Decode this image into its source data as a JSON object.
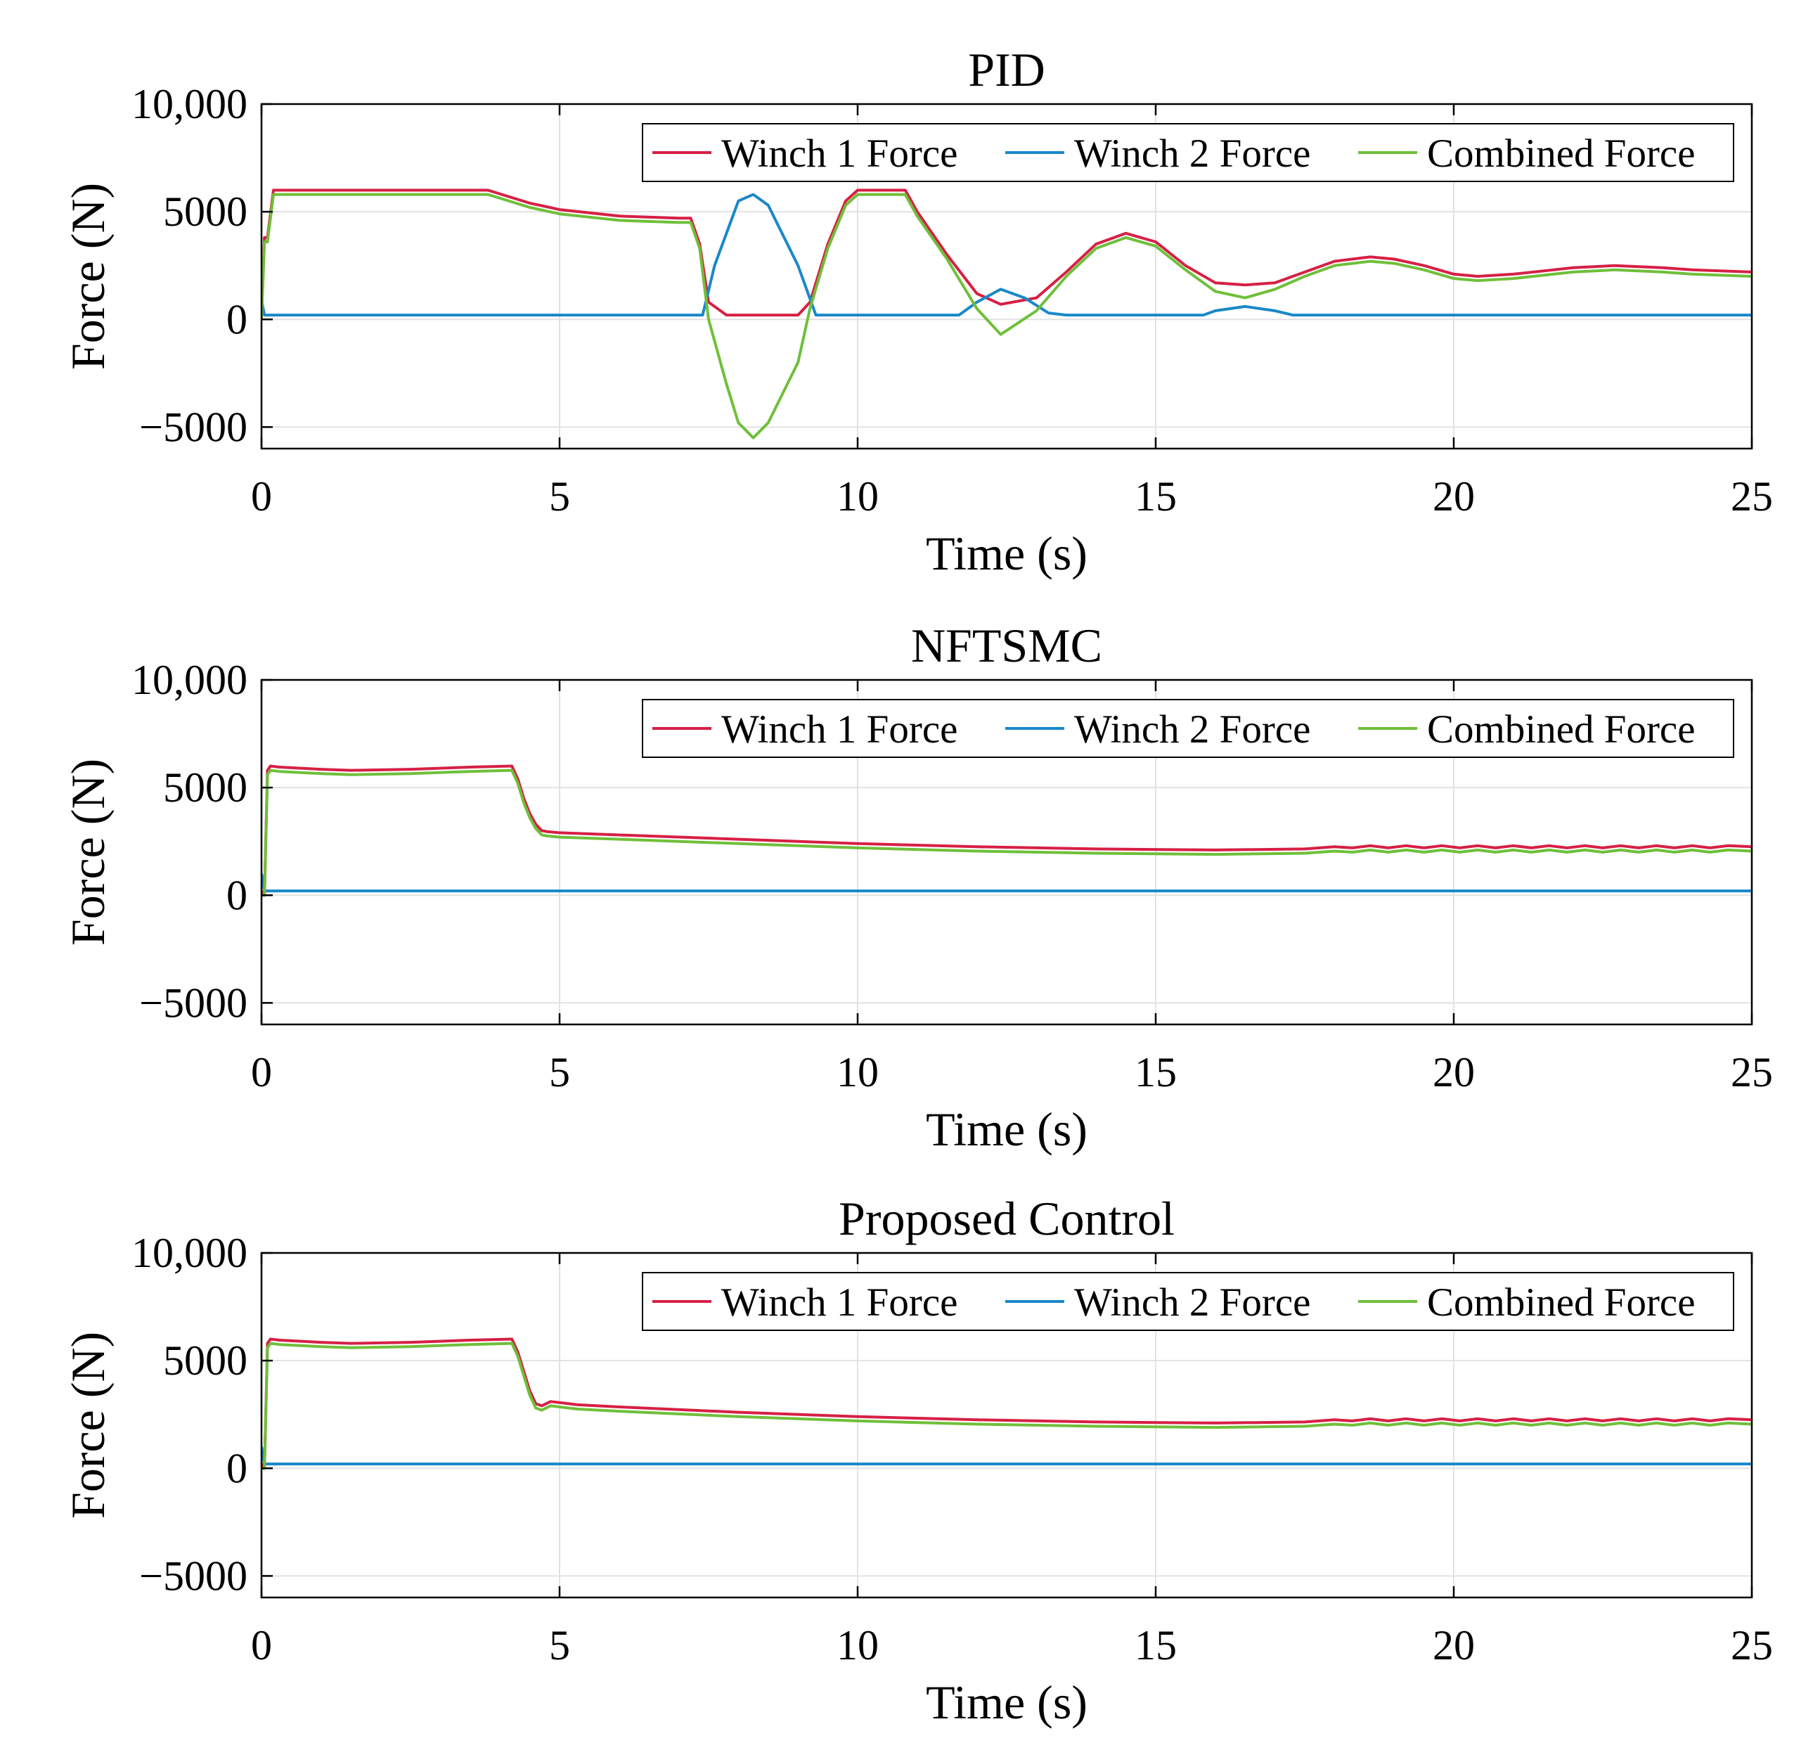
{
  "figure": {
    "colors": {
      "winch1": "#D62045",
      "winch2": "#1A88C9",
      "combined": "#6FBF3A",
      "grid": "#E2E2E2",
      "axis": "#000000"
    }
  },
  "chart_data": [
    {
      "type": "line",
      "title": "PID",
      "xlabel": "Time (s)",
      "ylabel": "Force (N)",
      "xlim": [
        0,
        25
      ],
      "ylim": [
        -6000,
        10000
      ],
      "xticks": [
        0,
        5,
        10,
        15,
        20,
        25
      ],
      "xtick_labels": [
        "0",
        "5",
        "10",
        "15",
        "20",
        "25"
      ],
      "yticks": [
        -5000,
        0,
        5000,
        10000
      ],
      "ytick_labels": [
        "−5000",
        "0",
        "5000",
        "10,000"
      ],
      "grid": true,
      "legend": {
        "placement": "top-right",
        "orientation": "horizontal",
        "entries": [
          "Winch 1 Force",
          "Winch 2 Force",
          "Combined Force"
        ]
      },
      "series": [
        {
          "name": "Winch 1 Force",
          "color_key": "winch1",
          "x": [
            0,
            0.05,
            0.1,
            0.2,
            0.3,
            1,
            2,
            3,
            3.8,
            4.5,
            5,
            6,
            7,
            7.2,
            7.35,
            7.5,
            7.8,
            8.5,
            9,
            9.2,
            9.5,
            9.8,
            10,
            10.5,
            10.8,
            11,
            11.5,
            12,
            12.4,
            13,
            13.5,
            14,
            14.5,
            15,
            15.5,
            16,
            16.5,
            17,
            17.5,
            18,
            18.6,
            19,
            19.5,
            20,
            20.4,
            21,
            22,
            22.7,
            23.5,
            24,
            25
          ],
          "y": [
            200,
            3800,
            3800,
            6000,
            6000,
            6000,
            6000,
            6000,
            6000,
            5400,
            5100,
            4800,
            4700,
            4700,
            3500,
            800,
            200,
            200,
            200,
            800,
            3500,
            5500,
            6000,
            6000,
            6000,
            5000,
            3000,
            1200,
            700,
            1000,
            2200,
            3500,
            4000,
            3600,
            2500,
            1700,
            1600,
            1700,
            2200,
            2700,
            2900,
            2800,
            2500,
            2100,
            2000,
            2100,
            2400,
            2500,
            2400,
            2300,
            2200
          ]
        },
        {
          "name": "Winch 2 Force",
          "color_key": "winch2",
          "x": [
            0,
            0.05,
            0.1,
            0.2,
            1,
            5,
            7.3,
            7.4,
            7.6,
            8.0,
            8.25,
            8.5,
            9.0,
            9.3,
            9.5,
            11.7,
            12.0,
            12.4,
            12.8,
            13.2,
            13.5,
            15.8,
            16.0,
            16.5,
            17.0,
            17.3,
            25
          ],
          "y": [
            900,
            200,
            200,
            200,
            200,
            200,
            200,
            200,
            2500,
            5500,
            5800,
            5300,
            2500,
            200,
            200,
            200,
            800,
            1400,
            1000,
            300,
            200,
            200,
            400,
            600,
            400,
            200,
            200
          ]
        },
        {
          "name": "Combined Force",
          "color_key": "combined",
          "x": [
            0,
            0.05,
            0.1,
            0.2,
            0.3,
            1,
            2,
            3,
            3.8,
            4.5,
            5,
            6,
            7,
            7.2,
            7.35,
            7.5,
            7.8,
            8.0,
            8.25,
            8.5,
            9.0,
            9.2,
            9.5,
            9.8,
            10,
            10.5,
            10.8,
            11,
            11.5,
            12,
            12.4,
            13,
            13.5,
            14,
            14.5,
            15,
            15.5,
            16,
            16.5,
            17,
            17.5,
            18,
            18.6,
            19,
            19.5,
            20,
            20.4,
            21,
            22,
            22.7,
            23.5,
            24,
            25
          ],
          "y": [
            0,
            3600,
            3600,
            5800,
            5800,
            5800,
            5800,
            5800,
            5800,
            5200,
            4900,
            4600,
            4500,
            4500,
            3300,
            0,
            -3000,
            -4800,
            -5500,
            -4800,
            -2000,
            500,
            3300,
            5300,
            5800,
            5800,
            5800,
            4800,
            2800,
            500,
            -700,
            400,
            2000,
            3300,
            3800,
            3400,
            2300,
            1300,
            1000,
            1400,
            2000,
            2500,
            2700,
            2600,
            2300,
            1900,
            1800,
            1900,
            2200,
            2300,
            2200,
            2100,
            2000
          ]
        }
      ]
    },
    {
      "type": "line",
      "title": "NFTSMC",
      "xlabel": "Time (s)",
      "ylabel": "Force (N)",
      "xlim": [
        0,
        25
      ],
      "ylim": [
        -6000,
        10000
      ],
      "xticks": [
        0,
        5,
        10,
        15,
        20,
        25
      ],
      "xtick_labels": [
        "0",
        "5",
        "10",
        "15",
        "20",
        "25"
      ],
      "yticks": [
        -5000,
        0,
        5000,
        10000
      ],
      "ytick_labels": [
        "−5000",
        "0",
        "5000",
        "10,000"
      ],
      "grid": true,
      "legend": {
        "placement": "top-right",
        "orientation": "horizontal",
        "entries": [
          "Winch 1 Force",
          "Winch 2 Force",
          "Combined Force"
        ]
      },
      "series": [
        {
          "name": "Winch 1 Force",
          "color_key": "winch1",
          "x": [
            0,
            0.05,
            0.1,
            0.15,
            0.3,
            1,
            1.5,
            2.5,
            3.5,
            4.2,
            4.3,
            4.4,
            4.5,
            4.6,
            4.7,
            4.8,
            5,
            6,
            8,
            10,
            12,
            14,
            16,
            17.5,
            18,
            18.3,
            18.6,
            18.9,
            19.2,
            19.5,
            19.8,
            20.1,
            20.4,
            20.7,
            21,
            21.3,
            21.6,
            21.9,
            22.2,
            22.5,
            22.8,
            23.1,
            23.4,
            23.7,
            24,
            24.3,
            24.6,
            25
          ],
          "y": [
            200,
            0,
            5800,
            6000,
            5950,
            5850,
            5800,
            5850,
            5950,
            6000,
            5400,
            4500,
            3800,
            3300,
            3000,
            2950,
            2900,
            2800,
            2600,
            2400,
            2250,
            2150,
            2100,
            2150,
            2250,
            2200,
            2300,
            2200,
            2300,
            2200,
            2300,
            2200,
            2300,
            2200,
            2300,
            2200,
            2300,
            2200,
            2300,
            2200,
            2300,
            2200,
            2300,
            2200,
            2300,
            2200,
            2300,
            2250
          ]
        },
        {
          "name": "Winch 2 Force",
          "color_key": "winch2",
          "x": [
            0,
            0.05,
            0.1,
            25
          ],
          "y": [
            1000,
            200,
            200,
            200
          ]
        },
        {
          "name": "Combined Force",
          "color_key": "combined",
          "x": [
            0,
            0.05,
            0.1,
            0.15,
            0.3,
            1,
            1.5,
            2.5,
            3.5,
            4.2,
            4.3,
            4.4,
            4.5,
            4.6,
            4.7,
            4.8,
            5,
            6,
            8,
            10,
            12,
            14,
            16,
            17.5,
            18,
            18.3,
            18.6,
            18.9,
            19.2,
            19.5,
            19.8,
            20.1,
            20.4,
            20.7,
            21,
            21.3,
            21.6,
            21.9,
            22.2,
            22.5,
            22.8,
            23.1,
            23.4,
            23.7,
            24,
            24.3,
            24.6,
            25
          ],
          "y": [
            0,
            0,
            5600,
            5800,
            5750,
            5650,
            5600,
            5650,
            5750,
            5800,
            5200,
            4300,
            3600,
            3100,
            2800,
            2750,
            2700,
            2600,
            2400,
            2200,
            2050,
            1950,
            1900,
            1950,
            2050,
            2000,
            2100,
            2000,
            2100,
            2000,
            2100,
            2000,
            2100,
            2000,
            2100,
            2000,
            2100,
            2000,
            2100,
            2000,
            2100,
            2000,
            2100,
            2000,
            2100,
            2000,
            2100,
            2050
          ]
        }
      ]
    },
    {
      "type": "line",
      "title": "Proposed Control",
      "xlabel": "Time (s)",
      "ylabel": "Force (N)",
      "xlim": [
        0,
        25
      ],
      "ylim": [
        -6000,
        10000
      ],
      "xticks": [
        0,
        5,
        10,
        15,
        20,
        25
      ],
      "xtick_labels": [
        "0",
        "5",
        "10",
        "15",
        "20",
        "25"
      ],
      "yticks": [
        -5000,
        0,
        5000,
        10000
      ],
      "ytick_labels": [
        "−5000",
        "0",
        "5000",
        "10,000"
      ],
      "grid": true,
      "legend": {
        "placement": "top-right",
        "orientation": "horizontal",
        "entries": [
          "Winch 1 Force",
          "Winch 2 Force",
          "Combined Force"
        ]
      },
      "series": [
        {
          "name": "Winch 1 Force",
          "color_key": "winch1",
          "x": [
            0,
            0.05,
            0.1,
            0.15,
            0.3,
            1,
            1.5,
            2.5,
            3.5,
            4.2,
            4.3,
            4.4,
            4.5,
            4.6,
            4.7,
            4.85,
            5,
            5.3,
            6,
            8,
            10,
            12,
            14,
            16,
            17.5,
            18,
            18.3,
            18.6,
            18.9,
            19.2,
            19.5,
            19.8,
            20.1,
            20.4,
            20.7,
            21,
            21.3,
            21.6,
            21.9,
            22.2,
            22.5,
            22.8,
            23.1,
            23.4,
            23.7,
            24,
            24.3,
            24.6,
            25
          ],
          "y": [
            200,
            0,
            5800,
            6000,
            5950,
            5850,
            5800,
            5850,
            5950,
            6000,
            5400,
            4500,
            3600,
            3000,
            2900,
            3100,
            3050,
            2950,
            2850,
            2600,
            2400,
            2250,
            2150,
            2100,
            2150,
            2250,
            2200,
            2300,
            2200,
            2300,
            2200,
            2300,
            2200,
            2300,
            2200,
            2300,
            2200,
            2300,
            2200,
            2300,
            2200,
            2300,
            2200,
            2300,
            2200,
            2300,
            2200,
            2300,
            2250
          ]
        },
        {
          "name": "Winch 2 Force",
          "color_key": "winch2",
          "x": [
            0,
            0.05,
            0.1,
            25
          ],
          "y": [
            1000,
            200,
            200,
            200
          ]
        },
        {
          "name": "Combined Force",
          "color_key": "combined",
          "x": [
            0,
            0.05,
            0.1,
            0.15,
            0.3,
            1,
            1.5,
            2.5,
            3.5,
            4.2,
            4.3,
            4.4,
            4.5,
            4.6,
            4.7,
            4.85,
            5,
            5.3,
            6,
            8,
            10,
            12,
            14,
            16,
            17.5,
            18,
            18.3,
            18.6,
            18.9,
            19.2,
            19.5,
            19.8,
            20.1,
            20.4,
            20.7,
            21,
            21.3,
            21.6,
            21.9,
            22.2,
            22.5,
            22.8,
            23.1,
            23.4,
            23.7,
            24,
            24.3,
            24.6,
            25
          ],
          "y": [
            0,
            0,
            5600,
            5800,
            5750,
            5650,
            5600,
            5650,
            5750,
            5800,
            5200,
            4300,
            3400,
            2800,
            2700,
            2900,
            2850,
            2750,
            2650,
            2400,
            2200,
            2050,
            1950,
            1900,
            1950,
            2050,
            2000,
            2100,
            2000,
            2100,
            2000,
            2100,
            2000,
            2100,
            2000,
            2100,
            2000,
            2100,
            2000,
            2100,
            2000,
            2100,
            2000,
            2100,
            2000,
            2100,
            2000,
            2100,
            2050
          ]
        }
      ]
    }
  ]
}
